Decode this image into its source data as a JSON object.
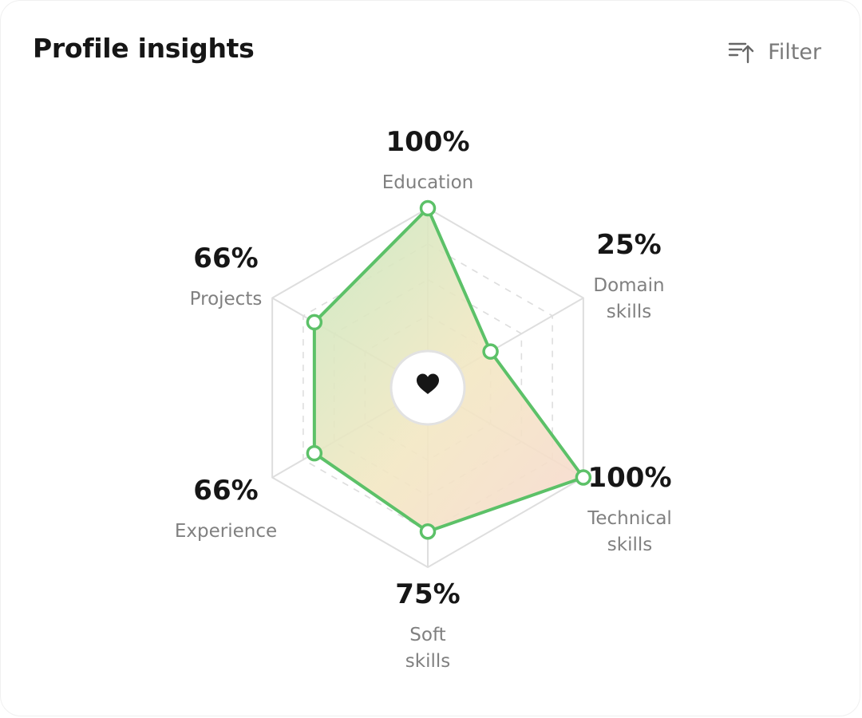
{
  "header": {
    "title": "Profile insights",
    "filter_label": "Filter",
    "filter_icon": "sort-ascending-icon"
  },
  "center_icon": "heart-icon",
  "colors": {
    "series_line": "#5cc168",
    "marker_fill": "#ffffff",
    "grid": "#dedede",
    "fill_gradient": [
      "#c9e8bf",
      "#f3e7c3",
      "#f7d9cf"
    ],
    "value_text": "#161616",
    "label_text": "#808080"
  },
  "chart_data": {
    "type": "radar",
    "title": "",
    "axes": [
      {
        "label_lines": [
          "Education"
        ],
        "value_label": "100%"
      },
      {
        "label_lines": [
          "Domain",
          "skills"
        ],
        "value_label": "25%"
      },
      {
        "label_lines": [
          "Technical",
          "skills"
        ],
        "value_label": "100%"
      },
      {
        "label_lines": [
          "Soft",
          "skills"
        ],
        "value_label": "75%"
      },
      {
        "label_lines": [
          "Experience"
        ],
        "value_label": "66%"
      },
      {
        "label_lines": [
          "Projects"
        ],
        "value_label": "66%"
      }
    ],
    "values": [
      100,
      25,
      100,
      75,
      66,
      66
    ],
    "range": [
      0,
      100
    ],
    "grid_levels": 4,
    "grid": true
  }
}
